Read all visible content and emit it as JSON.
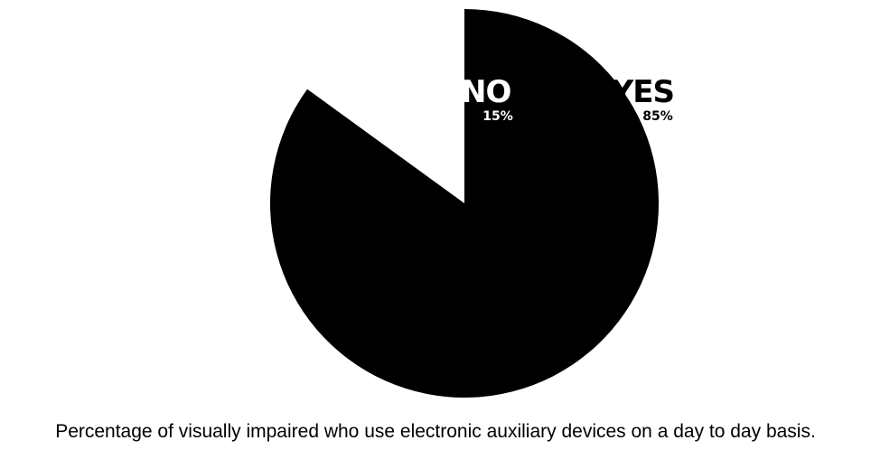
{
  "chart_data": {
    "type": "pie",
    "title": "",
    "slices": [
      {
        "label": "NO",
        "value": 15,
        "value_label": "15%",
        "color": "#ffffff"
      },
      {
        "label": "YES",
        "value": 85,
        "value_label": "85%",
        "color": "#000000"
      }
    ],
    "start": "12 o'clock",
    "direction": "counter-clockwise",
    "legend": "none"
  },
  "caption": "Percentage of visually impaired who use electronic auxiliary devices on a day to day basis."
}
